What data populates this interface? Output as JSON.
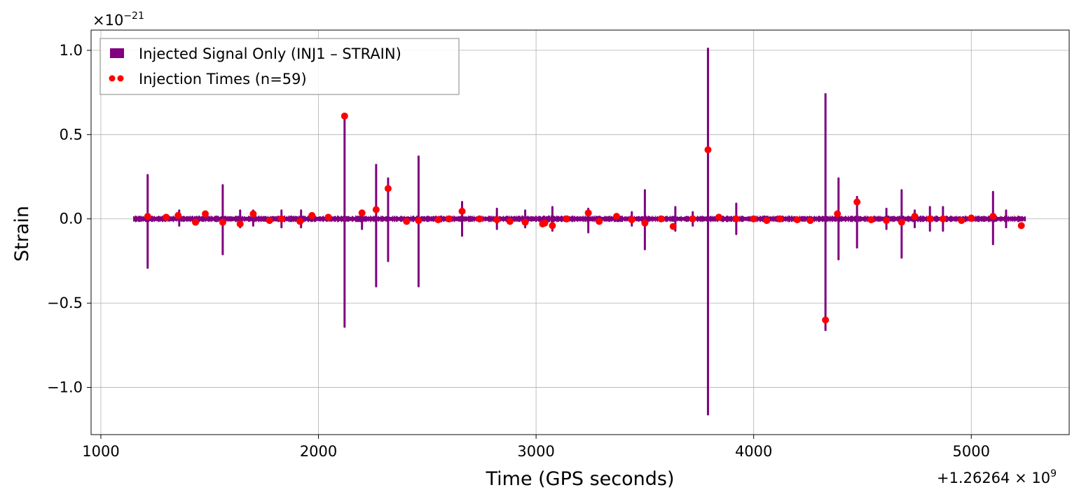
{
  "chart_data": {
    "type": "line",
    "title": "",
    "xlabel": "Time (GPS seconds)",
    "ylabel": "Strain",
    "y_scale_label": "×10",
    "y_scale_exp": "−21",
    "x_offset_label": "+1.26264 × 10",
    "x_offset_exp": "9",
    "xlim": [
      955,
      5450
    ],
    "ylim": [
      -1.28,
      1.12
    ],
    "x_ticks": [
      1000,
      2000,
      3000,
      4000,
      5000
    ],
    "x_tick_labels": [
      "1000",
      "2000",
      "3000",
      "4000",
      "5000"
    ],
    "y_ticks": [
      1.0,
      0.5,
      0.0,
      -0.5,
      -1.0
    ],
    "y_tick_labels": [
      "1.0",
      "0.5",
      "0.0",
      "−0.5",
      "−1.0"
    ],
    "grid": true,
    "legend_position": "top-left",
    "colors": {
      "signal": "#800080",
      "injection": "#ff0000",
      "grid": "#b0b0b0"
    },
    "series": [
      {
        "name": "Injected Signal Only (INJ1 – STRAIN)",
        "kind": "line",
        "x_range": [
          1150,
          5250
        ],
        "noise_amplitude": 0.02,
        "spikes": [
          {
            "x": 1215,
            "ymax": 0.26,
            "ymin": -0.29
          },
          {
            "x": 1360,
            "ymax": 0.05,
            "ymin": -0.04
          },
          {
            "x": 1560,
            "ymax": 0.2,
            "ymin": -0.21
          },
          {
            "x": 1640,
            "ymax": 0.05,
            "ymin": -0.05
          },
          {
            "x": 1700,
            "ymax": 0.05,
            "ymin": -0.04
          },
          {
            "x": 1830,
            "ymax": 0.05,
            "ymin": -0.05
          },
          {
            "x": 1920,
            "ymax": 0.05,
            "ymin": -0.05
          },
          {
            "x": 2120,
            "ymax": 0.61,
            "ymin": -0.64
          },
          {
            "x": 2200,
            "ymax": 0.05,
            "ymin": -0.06
          },
          {
            "x": 2265,
            "ymax": 0.32,
            "ymin": -0.4
          },
          {
            "x": 2320,
            "ymax": 0.24,
            "ymin": -0.25
          },
          {
            "x": 2460,
            "ymax": 0.37,
            "ymin": -0.4
          },
          {
            "x": 2660,
            "ymax": 0.1,
            "ymin": -0.1
          },
          {
            "x": 2820,
            "ymax": 0.06,
            "ymin": -0.06
          },
          {
            "x": 2950,
            "ymax": 0.05,
            "ymin": -0.05
          },
          {
            "x": 3075,
            "ymax": 0.07,
            "ymin": -0.07
          },
          {
            "x": 3240,
            "ymax": 0.06,
            "ymin": -0.08
          },
          {
            "x": 3440,
            "ymax": 0.04,
            "ymin": -0.04
          },
          {
            "x": 3500,
            "ymax": 0.17,
            "ymin": -0.18
          },
          {
            "x": 3640,
            "ymax": 0.07,
            "ymin": -0.07
          },
          {
            "x": 3720,
            "ymax": 0.04,
            "ymin": -0.04
          },
          {
            "x": 3790,
            "ymax": 1.01,
            "ymin": -1.16
          },
          {
            "x": 3920,
            "ymax": 0.09,
            "ymin": -0.09
          },
          {
            "x": 4330,
            "ymax": 0.74,
            "ymin": -0.66
          },
          {
            "x": 4390,
            "ymax": 0.24,
            "ymin": -0.24
          },
          {
            "x": 4475,
            "ymax": 0.13,
            "ymin": -0.17
          },
          {
            "x": 4610,
            "ymax": 0.06,
            "ymin": -0.06
          },
          {
            "x": 4680,
            "ymax": 0.17,
            "ymin": -0.23
          },
          {
            "x": 4740,
            "ymax": 0.05,
            "ymin": -0.05
          },
          {
            "x": 4810,
            "ymax": 0.07,
            "ymin": -0.07
          },
          {
            "x": 4870,
            "ymax": 0.07,
            "ymin": -0.07
          },
          {
            "x": 5100,
            "ymax": 0.16,
            "ymin": -0.15
          },
          {
            "x": 5160,
            "ymax": 0.05,
            "ymin": -0.05
          }
        ]
      },
      {
        "name": "Injection Times (n=59)",
        "kind": "scatter",
        "points": [
          {
            "x": 1215,
            "y": 0.015
          },
          {
            "x": 1300,
            "y": 0.01
          },
          {
            "x": 1355,
            "y": 0.02
          },
          {
            "x": 1435,
            "y": -0.02
          },
          {
            "x": 1480,
            "y": 0.03
          },
          {
            "x": 1560,
            "y": -0.02
          },
          {
            "x": 1640,
            "y": -0.03
          },
          {
            "x": 1700,
            "y": 0.03
          },
          {
            "x": 1775,
            "y": -0.01
          },
          {
            "x": 1830,
            "y": 0.0
          },
          {
            "x": 1915,
            "y": -0.015
          },
          {
            "x": 1970,
            "y": 0.02
          },
          {
            "x": 2045,
            "y": 0.01
          },
          {
            "x": 2120,
            "y": 0.61
          },
          {
            "x": 2200,
            "y": 0.035
          },
          {
            "x": 2265,
            "y": 0.055
          },
          {
            "x": 2320,
            "y": 0.18
          },
          {
            "x": 2405,
            "y": -0.015
          },
          {
            "x": 2460,
            "y": -0.01
          },
          {
            "x": 2550,
            "y": -0.005
          },
          {
            "x": 2600,
            "y": 0.0
          },
          {
            "x": 2660,
            "y": 0.045
          },
          {
            "x": 2740,
            "y": 0.0
          },
          {
            "x": 2820,
            "y": -0.005
          },
          {
            "x": 2880,
            "y": -0.015
          },
          {
            "x": 2950,
            "y": -0.02
          },
          {
            "x": 3030,
            "y": -0.03
          },
          {
            "x": 3040,
            "y": -0.025
          },
          {
            "x": 3075,
            "y": -0.04
          },
          {
            "x": 3140,
            "y": 0.0
          },
          {
            "x": 3240,
            "y": 0.035
          },
          {
            "x": 3290,
            "y": -0.015
          },
          {
            "x": 3370,
            "y": 0.015
          },
          {
            "x": 3440,
            "y": -0.005
          },
          {
            "x": 3500,
            "y": -0.025
          },
          {
            "x": 3575,
            "y": 0.0
          },
          {
            "x": 3630,
            "y": -0.045
          },
          {
            "x": 3720,
            "y": 0.0
          },
          {
            "x": 3790,
            "y": 0.41
          },
          {
            "x": 3840,
            "y": 0.01
          },
          {
            "x": 3920,
            "y": 0.0
          },
          {
            "x": 4000,
            "y": 0.0
          },
          {
            "x": 4060,
            "y": -0.01
          },
          {
            "x": 4120,
            "y": 0.0
          },
          {
            "x": 4200,
            "y": -0.005
          },
          {
            "x": 4260,
            "y": -0.01
          },
          {
            "x": 4330,
            "y": -0.6
          },
          {
            "x": 4385,
            "y": 0.03
          },
          {
            "x": 4475,
            "y": 0.1
          },
          {
            "x": 4540,
            "y": -0.005
          },
          {
            "x": 4610,
            "y": -0.01
          },
          {
            "x": 4680,
            "y": -0.02
          },
          {
            "x": 4740,
            "y": 0.015
          },
          {
            "x": 4810,
            "y": 0.0
          },
          {
            "x": 4870,
            "y": 0.0
          },
          {
            "x": 4955,
            "y": -0.01
          },
          {
            "x": 5000,
            "y": 0.005
          },
          {
            "x": 5100,
            "y": 0.015
          },
          {
            "x": 5230,
            "y": -0.04
          }
        ]
      }
    ]
  }
}
